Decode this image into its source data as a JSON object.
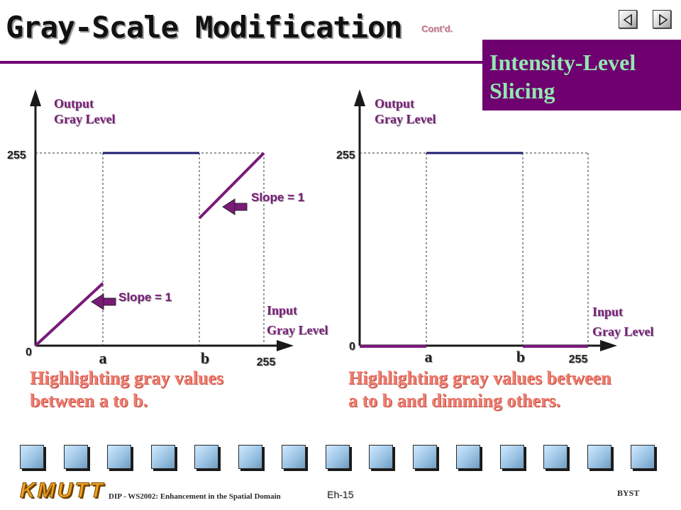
{
  "header": {
    "title": "Gray-Scale Modification",
    "contd": "Cont'd.",
    "section_line1": "Intensity-Level",
    "section_line2": "Slicing",
    "nav_prev": "previous-slide",
    "nav_next": "next-slide"
  },
  "colors": {
    "accent": "#6e0070",
    "curve": "#7a1a7a",
    "high_level_line": "#1b1b6e",
    "section_text": "#93e7b0",
    "caption_text": "#f07c6e"
  },
  "diagrams": [
    {
      "y_label_line1": "Output",
      "y_label_line2": "Gray Level",
      "x_label_line1": "Input",
      "x_label_line2": "Gray Level",
      "y_max_label": "255",
      "origin_label": "0",
      "x_tick_a": "a",
      "x_tick_b": "b",
      "x_max_label": "255",
      "slope_label_upper": "Slope = 1",
      "slope_label_lower": "Slope = 1",
      "caption_line1": "Highlighting gray values",
      "caption_line2": "between a to b."
    },
    {
      "y_label_line1": "Output",
      "y_label_line2": "Gray Level",
      "x_label_line1": "Input",
      "x_label_line2": "Gray Level",
      "y_max_label": "255",
      "origin_label": "0",
      "x_tick_a": "a",
      "x_tick_b": "b",
      "x_max_label": "255",
      "caption_line1": "Highlighting gray values between",
      "caption_line2": "a to b and dimming others."
    }
  ],
  "footer": {
    "logo": "KMUTT",
    "course": "DIP - WS2002: Enhancement in the Spatial Domain",
    "page": "Eh-15",
    "author": "BYST"
  },
  "thumbnail_count": 15
}
